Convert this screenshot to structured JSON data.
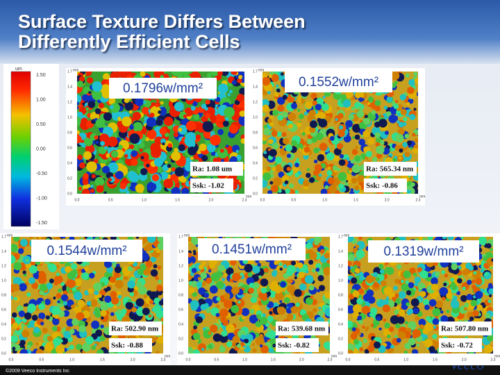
{
  "header": {
    "title_lines": [
      "Surface Texture Differs Between",
      "Differently Efficient Cells"
    ]
  },
  "colorbar": {
    "unit": "um",
    "labels": [
      "1.50",
      "1.00",
      "0.50",
      "0.00",
      "-0.50",
      "-1.00",
      "-1.50"
    ]
  },
  "axes": {
    "unit": "mm",
    "y_ticks": [
      "0.0",
      "0.2",
      "0.4",
      "0.6",
      "0.8",
      "1.0",
      "1.2",
      "1.4",
      "1.7"
    ],
    "x_ticks": [
      "0.0",
      "0.5",
      "1.0",
      "1.5",
      "2.0",
      "2.3"
    ]
  },
  "panels": [
    {
      "label": "0.1796w/mm²",
      "ra": "Ra: 1.08 um",
      "ssk": "Ssk: -1.02"
    },
    {
      "label": "0.1552w/mm²",
      "ra": "Ra: 565.34 nm",
      "ssk": "Ssk: -0.86"
    },
    {
      "label": "0.1544w/mm²",
      "ra": "Ra: 502.90 nm",
      "ssk": "Ssk: -0.88"
    },
    {
      "label": "0.1451w/mm²",
      "ra": "Ra: 539.68 nm",
      "ssk": "Ssk: -0.82"
    },
    {
      "label": "0.1319w/mm²",
      "ra": "Ra: 507.80 nm",
      "ssk": "Ssk: -0.72"
    }
  ],
  "footer": {
    "copyright": "©2009 Veeco Instruments Inc",
    "logo": "Veeco"
  }
}
